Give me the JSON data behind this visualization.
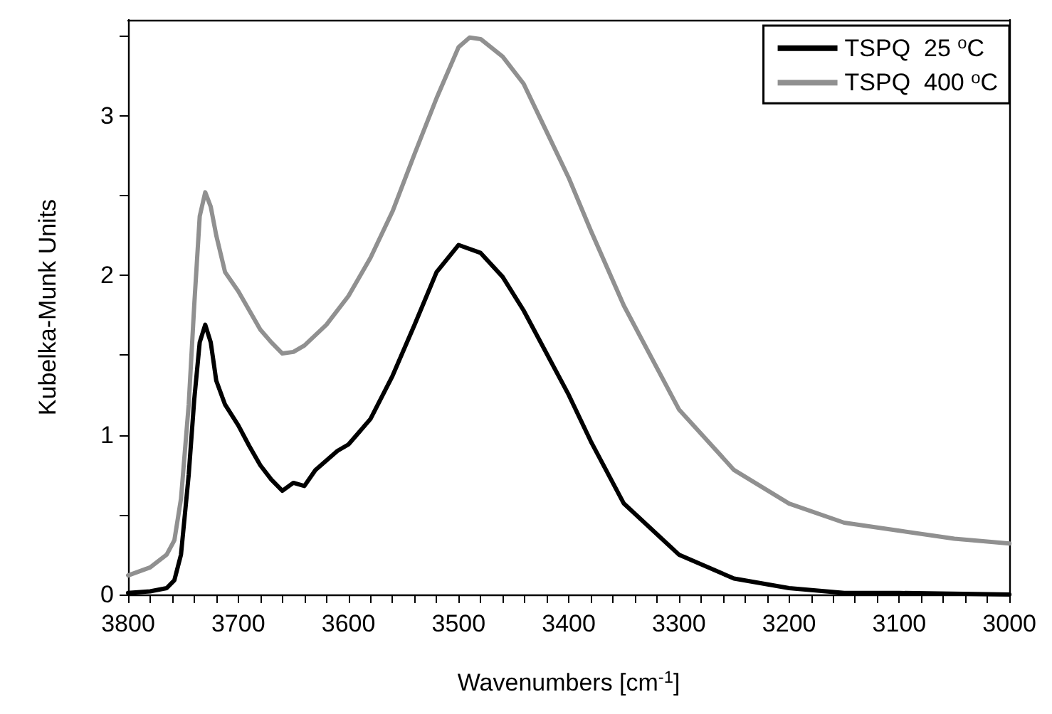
{
  "chart_data": {
    "type": "line",
    "xlabel": "Wavenumbers [cm$^{-1}$]",
    "ylabel": "Kubelka-Munk Units",
    "xlim": [
      3800,
      3000
    ],
    "ylim": [
      0,
      3.6
    ],
    "xticks": [
      3800,
      {
        "value": 3780,
        "label": null
      },
      {
        "value": 3760,
        "label": null
      },
      {
        "value": 3740,
        "label": null
      },
      {
        "value": 3720,
        "label": null
      },
      3700,
      {
        "value": 3680,
        "label": null
      },
      {
        "value": 3660,
        "label": null
      },
      {
        "value": 3640,
        "label": null
      },
      {
        "value": 3620,
        "label": null
      },
      3600,
      {
        "value": 3580,
        "label": null
      },
      {
        "value": 3560,
        "label": null
      },
      {
        "value": 3540,
        "label": null
      },
      {
        "value": 3520,
        "label": null
      },
      3500,
      {
        "value": 3480,
        "label": null
      },
      {
        "value": 3460,
        "label": null
      },
      {
        "value": 3440,
        "label": null
      },
      {
        "value": 3420,
        "label": null
      },
      3400,
      {
        "value": 3380,
        "label": null
      },
      {
        "value": 3360,
        "label": null
      },
      {
        "value": 3340,
        "label": null
      },
      {
        "value": 3320,
        "label": null
      },
      3300,
      {
        "value": 3280,
        "label": null
      },
      {
        "value": 3260,
        "label": null
      },
      {
        "value": 3240,
        "label": null
      },
      {
        "value": 3220,
        "label": null
      },
      3200,
      {
        "value": 3180,
        "label": null
      },
      {
        "value": 3160,
        "label": null
      },
      {
        "value": 3140,
        "label": null
      },
      {
        "value": 3120,
        "label": null
      },
      3100,
      {
        "value": 3080,
        "label": null
      },
      {
        "value": 3060,
        "label": null
      },
      {
        "value": 3040,
        "label": null
      },
      {
        "value": 3020,
        "label": null
      },
      3000
    ],
    "yticks": [
      0,
      {
        "value": 0.5,
        "label": null
      },
      1,
      {
        "value": 1.5,
        "label": null
      },
      2,
      {
        "value": 2.5,
        "label": null
      },
      3,
      {
        "value": 3.5,
        "label": null
      }
    ],
    "grid": false,
    "legend": "top right",
    "marker": "none",
    "line_style": "solid",
    "series": [
      {
        "name": "TSPQ  25 $^{o}$C",
        "color": "#000000",
        "x": [
          3800,
          3780,
          3765,
          3758,
          3752,
          3745,
          3740,
          3735,
          3730,
          3725,
          3720,
          3712,
          3700,
          3690,
          3680,
          3670,
          3660,
          3650,
          3640,
          3630,
          3620,
          3610,
          3600,
          3580,
          3560,
          3540,
          3520,
          3500,
          3480,
          3460,
          3441,
          3400,
          3380,
          3350,
          3300,
          3250,
          3200,
          3150,
          3100,
          3000
        ],
        "values": [
          0.01,
          0.02,
          0.04,
          0.09,
          0.25,
          0.75,
          1.22,
          1.58,
          1.69,
          1.58,
          1.34,
          1.19,
          1.06,
          0.93,
          0.81,
          0.72,
          0.65,
          0.7,
          0.68,
          0.78,
          0.84,
          0.9,
          0.94,
          1.1,
          1.37,
          1.69,
          2.02,
          2.19,
          2.14,
          1.99,
          1.78,
          1.25,
          0.96,
          0.57,
          0.25,
          0.1,
          0.04,
          0.01,
          0.01,
          0
        ]
      },
      {
        "name": "TSPQ  400 $^{o}$C",
        "color": "#909090",
        "x": [
          3800,
          3780,
          3765,
          3758,
          3752,
          3745,
          3740,
          3735,
          3730,
          3725,
          3720,
          3712,
          3700,
          3690,
          3680,
          3670,
          3660,
          3650,
          3640,
          3620,
          3600,
          3580,
          3560,
          3540,
          3520,
          3500,
          3490,
          3480,
          3460,
          3441,
          3400,
          3380,
          3350,
          3300,
          3250,
          3200,
          3150,
          3100,
          3050,
          3000
        ],
        "values": [
          0.12,
          0.17,
          0.25,
          0.34,
          0.6,
          1.19,
          1.81,
          2.37,
          2.52,
          2.43,
          2.25,
          2.02,
          1.9,
          1.78,
          1.66,
          1.58,
          1.51,
          1.52,
          1.56,
          1.69,
          1.87,
          2.11,
          2.4,
          2.76,
          3.11,
          3.43,
          3.49,
          3.48,
          3.37,
          3.2,
          2.61,
          2.28,
          1.81,
          1.16,
          0.78,
          0.57,
          0.45,
          0.4,
          0.35,
          0.32
        ]
      }
    ]
  }
}
